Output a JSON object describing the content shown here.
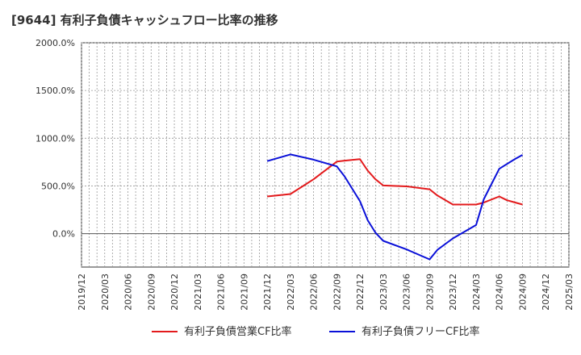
{
  "chart_data": {
    "type": "line",
    "title": "[9644]  有利子負債キャッシュフロー比率の推移",
    "xlabel": "",
    "ylabel": "",
    "ylim": [
      -350,
      2000
    ],
    "y_ticks": [
      0,
      500,
      1000,
      1500,
      2000
    ],
    "y_tick_labels": [
      "0.0%",
      "500.0%",
      "1000.0%",
      "1500.0%",
      "2000.0%"
    ],
    "x_ticks": [
      "2019/12",
      "2020/03",
      "2020/06",
      "2020/09",
      "2020/12",
      "2021/03",
      "2021/06",
      "2021/09",
      "2021/12",
      "2022/03",
      "2022/06",
      "2022/09",
      "2022/12",
      "2023/03",
      "2023/06",
      "2023/09",
      "2023/12",
      "2024/03",
      "2024/06",
      "2024/09",
      "2024/12",
      "2025/03"
    ],
    "grid": true,
    "legend_position": "bottom",
    "series": [
      {
        "name": "有利子負債営業CF比率",
        "color": "#e31a1c",
        "points": [
          [
            "2021/12",
            390
          ],
          [
            "2022/03",
            415
          ],
          [
            "2022/06",
            570
          ],
          [
            "2022/09",
            755
          ],
          [
            "2022/10",
            765
          ],
          [
            "2022/12",
            780
          ],
          [
            "2023/01",
            660
          ],
          [
            "2023/02",
            570
          ],
          [
            "2023/03",
            505
          ],
          [
            "2023/06",
            495
          ],
          [
            "2023/09",
            465
          ],
          [
            "2023/10",
            400
          ],
          [
            "2023/12",
            305
          ],
          [
            "2024/03",
            305
          ],
          [
            "2024/04",
            325
          ],
          [
            "2024/06",
            390
          ],
          [
            "2024/07",
            350
          ],
          [
            "2024/09",
            305
          ]
        ]
      },
      {
        "name": "有利子負債フリーCF比率",
        "color": "#0a10d8",
        "points": [
          [
            "2021/12",
            760
          ],
          [
            "2022/03",
            830
          ],
          [
            "2022/06",
            775
          ],
          [
            "2022/09",
            705
          ],
          [
            "2022/10",
            600
          ],
          [
            "2022/12",
            340
          ],
          [
            "2023/01",
            140
          ],
          [
            "2023/02",
            10
          ],
          [
            "2023/03",
            -75
          ],
          [
            "2023/06",
            -165
          ],
          [
            "2023/09",
            -270
          ],
          [
            "2023/10",
            -170
          ],
          [
            "2023/12",
            -50
          ],
          [
            "2024/03",
            90
          ],
          [
            "2024/04",
            360
          ],
          [
            "2024/06",
            680
          ],
          [
            "2024/08",
            780
          ],
          [
            "2024/09",
            825
          ]
        ]
      }
    ]
  }
}
